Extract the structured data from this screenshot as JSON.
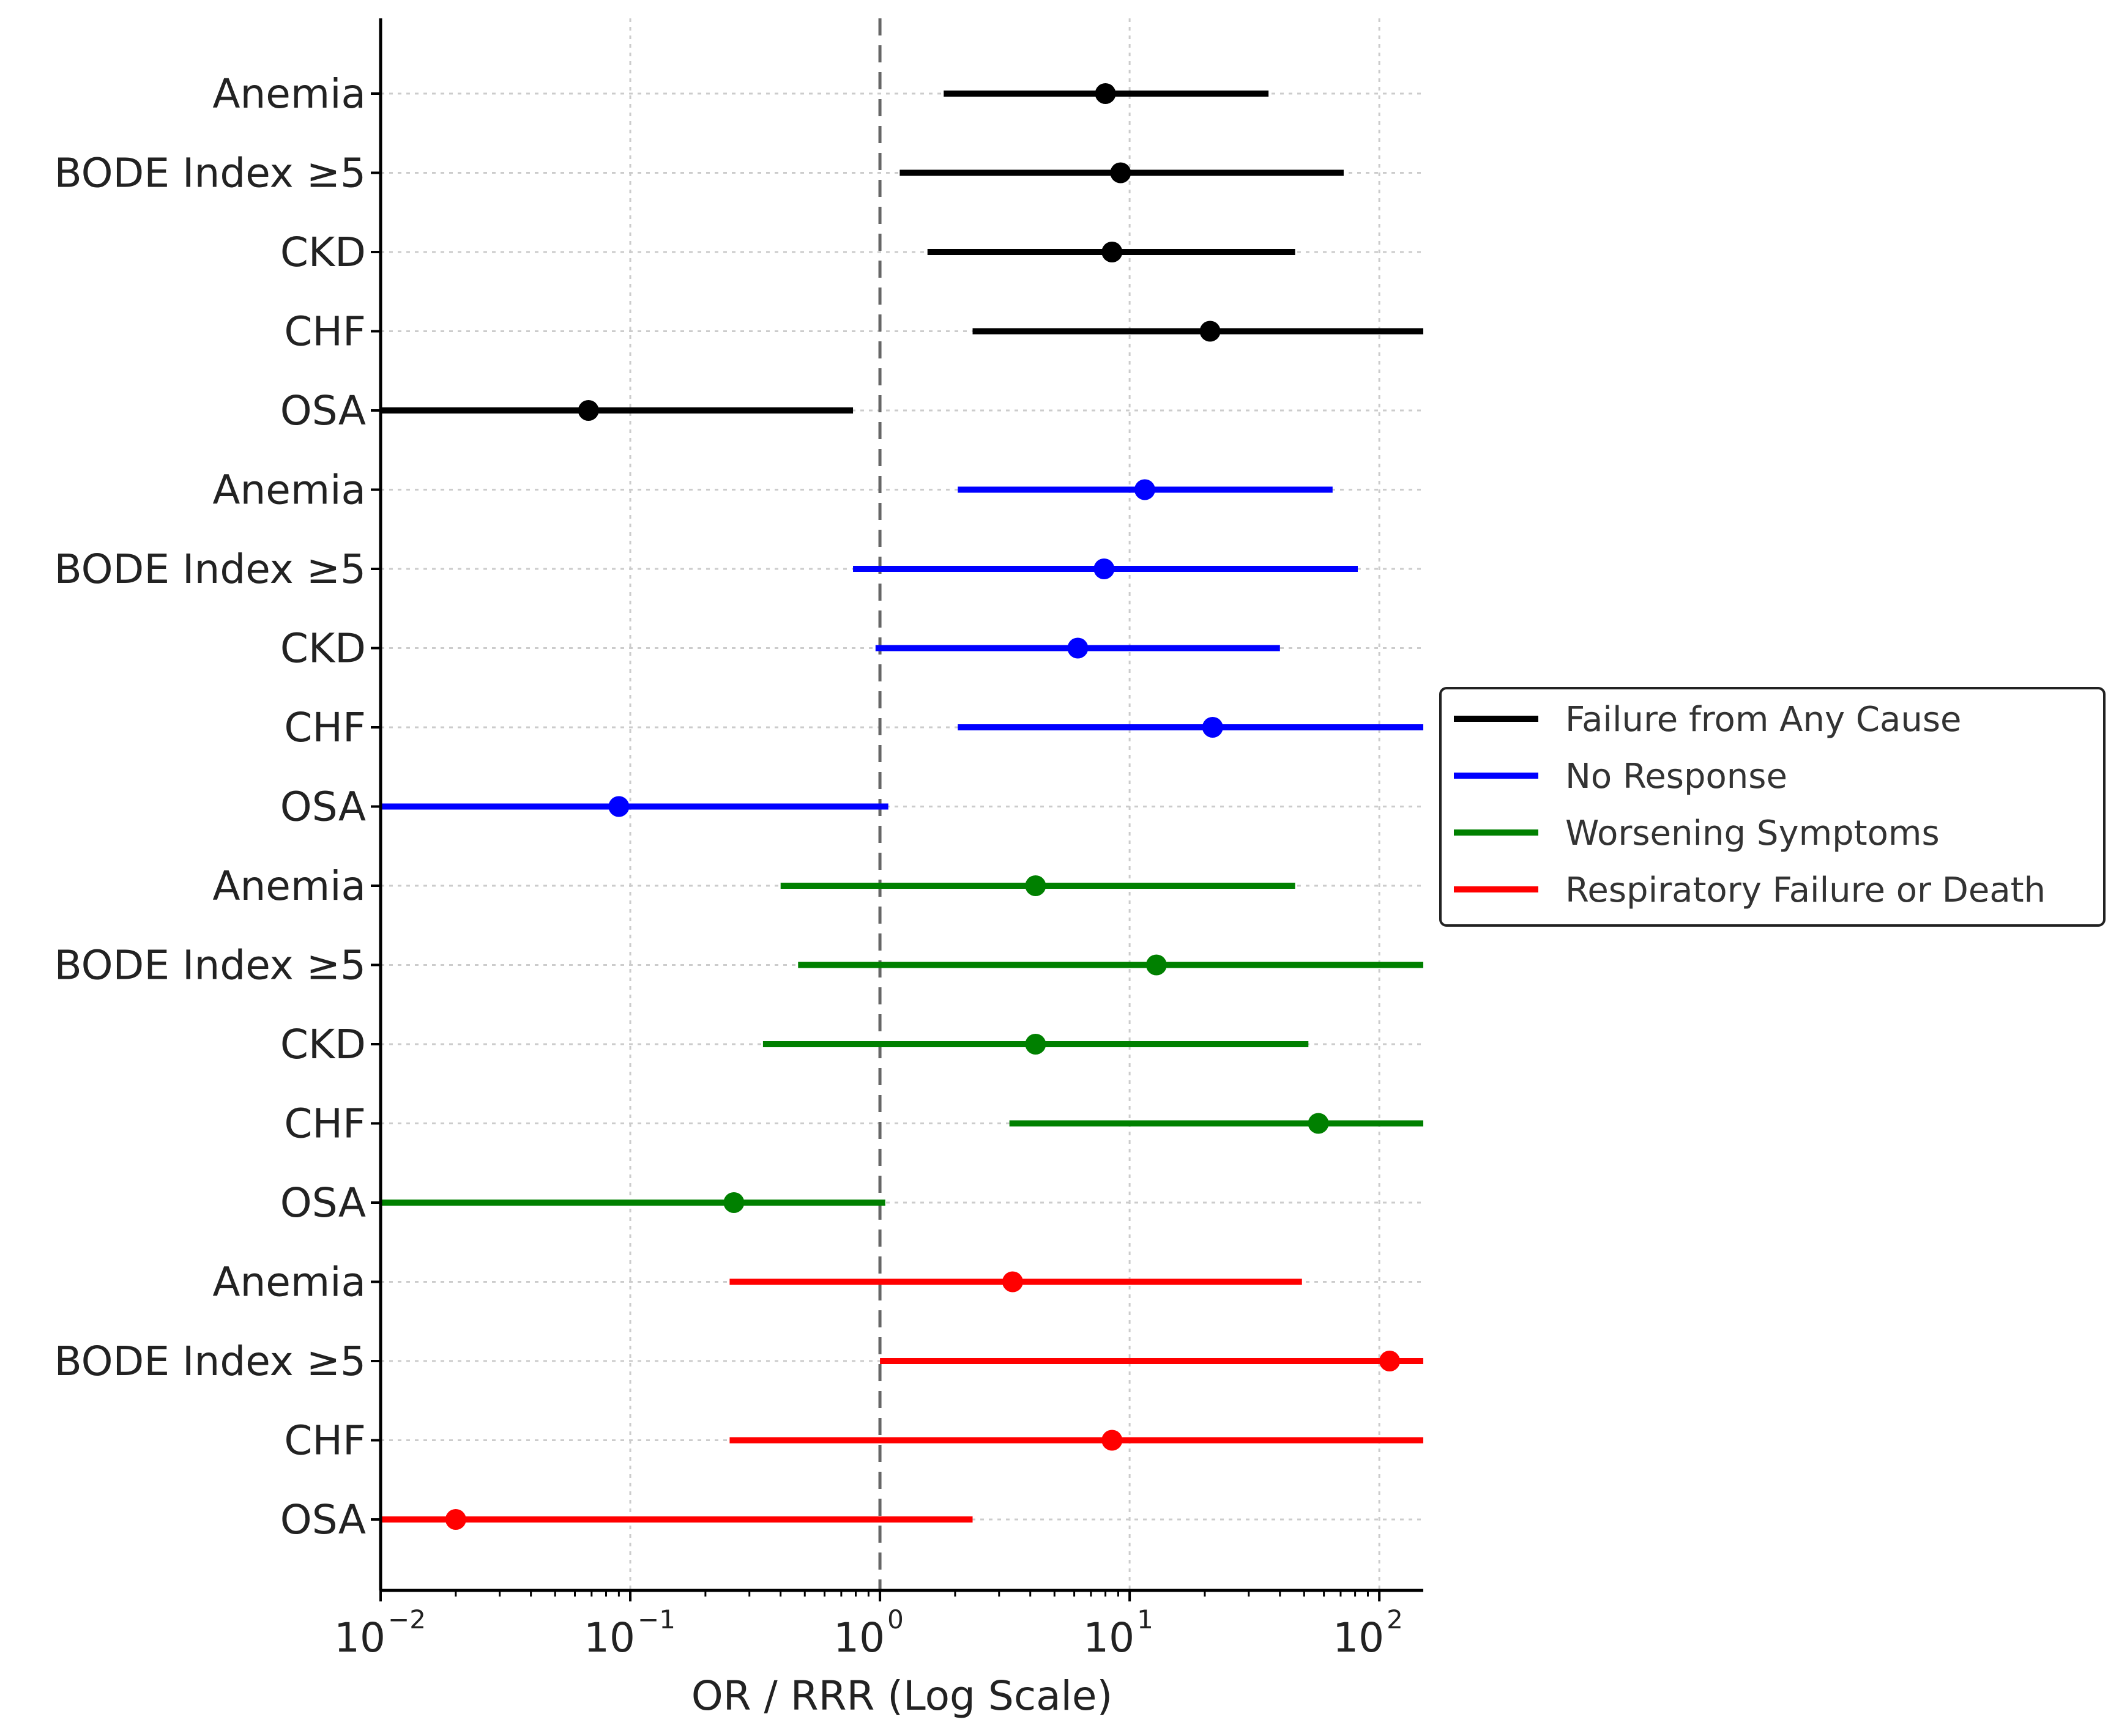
{
  "chart_data": {
    "type": "forest",
    "title": "",
    "xlabel": "OR / RRR (Log Scale)",
    "ylabel": "",
    "x_scale": "log",
    "xlim": [
      0.01,
      150
    ],
    "reference_line": 1,
    "grid": true,
    "legend_position": "center-right",
    "xticks": [
      {
        "value": 0.01,
        "base": "10",
        "exp": "−2"
      },
      {
        "value": 0.1,
        "base": "10",
        "exp": "−1"
      },
      {
        "value": 1,
        "base": "10",
        "exp": "0"
      },
      {
        "value": 10,
        "base": "10",
        "exp": "1"
      },
      {
        "value": 100,
        "base": "10",
        "exp": "2"
      }
    ],
    "series": [
      {
        "name": "Failure from Any Cause",
        "color": "#000000",
        "rows": [
          {
            "label": "Anemia",
            "estimate": 8.0,
            "lower": 1.8,
            "upper": 36
          },
          {
            "label": "BODE Index ≥5",
            "estimate": 9.2,
            "lower": 1.2,
            "upper": 72
          },
          {
            "label": "CKD",
            "estimate": 8.5,
            "lower": 1.55,
            "upper": 46
          },
          {
            "label": "CHF",
            "estimate": 21,
            "lower": 2.35,
            "upper": 150
          },
          {
            "label": "OSA",
            "estimate": 0.068,
            "lower": 0.01,
            "upper": 0.78
          }
        ]
      },
      {
        "name": "No Response",
        "color": "#0000ff",
        "rows": [
          {
            "label": "Anemia",
            "estimate": 11.5,
            "lower": 2.05,
            "upper": 65
          },
          {
            "label": "BODE Index ≥5",
            "estimate": 7.9,
            "lower": 0.78,
            "upper": 82
          },
          {
            "label": "CKD",
            "estimate": 6.2,
            "lower": 0.96,
            "upper": 40
          },
          {
            "label": "CHF",
            "estimate": 21.5,
            "lower": 2.05,
            "upper": 150
          },
          {
            "label": "OSA",
            "estimate": 0.09,
            "lower": 0.01,
            "upper": 1.08
          }
        ]
      },
      {
        "name": "Worsening Symptoms",
        "color": "#008000",
        "rows": [
          {
            "label": "Anemia",
            "estimate": 4.2,
            "lower": 0.4,
            "upper": 46
          },
          {
            "label": "BODE Index ≥5",
            "estimate": 12.8,
            "lower": 0.47,
            "upper": 150
          },
          {
            "label": "CKD",
            "estimate": 4.2,
            "lower": 0.34,
            "upper": 52
          },
          {
            "label": "CHF",
            "estimate": 57,
            "lower": 3.3,
            "upper": 150
          },
          {
            "label": "OSA",
            "estimate": 0.26,
            "lower": 0.01,
            "upper": 1.05
          }
        ]
      },
      {
        "name": "Respiratory Failure or Death",
        "color": "#ff0000",
        "rows": [
          {
            "label": "Anemia",
            "estimate": 3.4,
            "lower": 0.25,
            "upper": 49
          },
          {
            "label": "BODE Index ≥5",
            "estimate": 110,
            "lower": 1.0,
            "upper": 150
          },
          {
            "label": "CHF",
            "estimate": 8.5,
            "lower": 0.25,
            "upper": 150
          },
          {
            "label": "OSA",
            "estimate": 0.02,
            "lower": 0.01,
            "upper": 2.35
          }
        ]
      }
    ]
  }
}
